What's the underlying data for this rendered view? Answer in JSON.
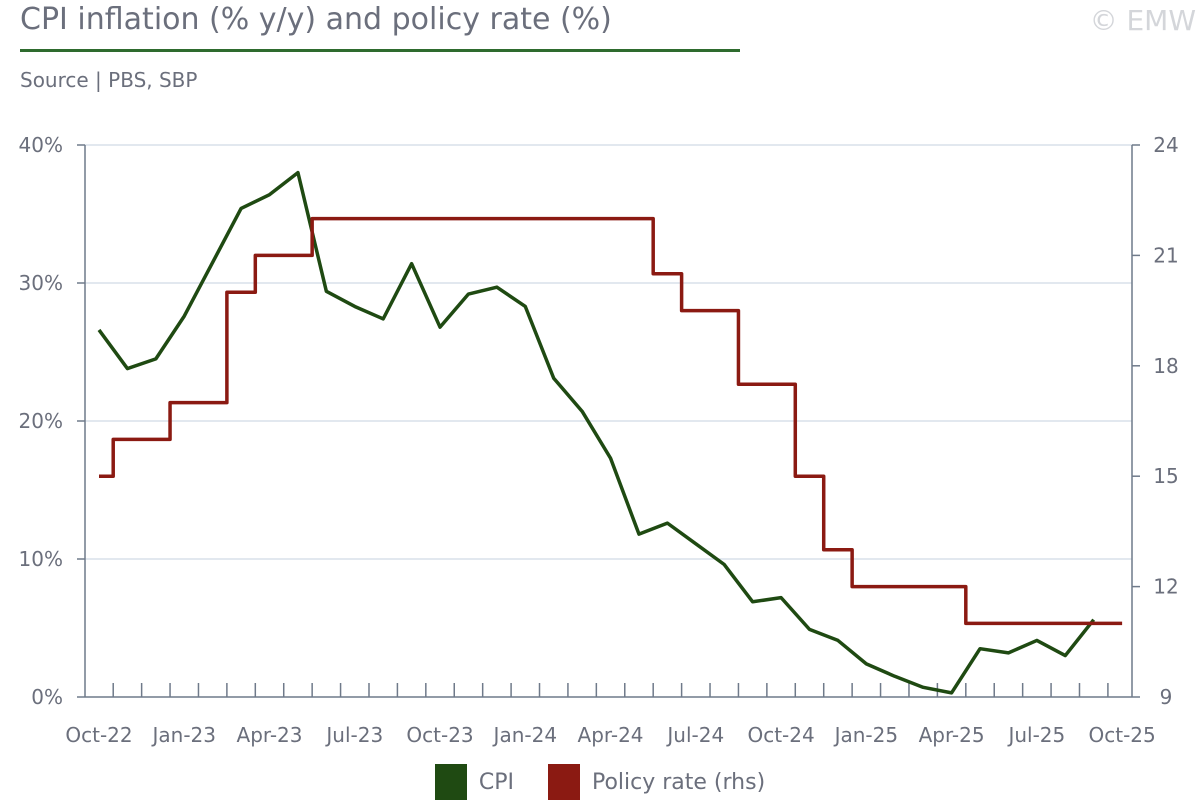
{
  "header": {
    "title": "CPI inflation (% y/y) and policy rate (%)",
    "source": "Source | PBS, SBP",
    "watermark": "© EMW"
  },
  "colors": {
    "cpi": "#1f4a12",
    "policy": "#8b1a12",
    "grid": "#d9e1ea",
    "axis": "#6f7a8a"
  },
  "legend": [
    {
      "label": "CPI",
      "color": "#1f4a12"
    },
    {
      "label": "Policy rate (rhs)",
      "color": "#8b1a12"
    }
  ],
  "chart_data": {
    "type": "line",
    "title": "CPI inflation (% y/y) and policy rate (%)",
    "x_labels": [
      "Oct-22",
      "Jan-23",
      "Apr-23",
      "Jul-23",
      "Oct-23",
      "Jan-24",
      "Apr-24",
      "Jul-24",
      "Oct-24",
      "Jan-25",
      "Apr-25",
      "Jul-25",
      "Oct-25"
    ],
    "x_start_index": -0.5,
    "x_end_index": 36,
    "y_left": {
      "min": 0,
      "max": 40,
      "ticks": [
        "0%",
        "10%",
        "20%",
        "30%",
        "40%"
      ],
      "tick_values": [
        0,
        10,
        20,
        30,
        40
      ]
    },
    "y_right": {
      "min": 9,
      "max": 24,
      "ticks": [
        "9",
        "12",
        "15",
        "18",
        "21",
        "24"
      ],
      "tick_values": [
        9,
        12,
        15,
        18,
        21,
        24
      ]
    },
    "series": [
      {
        "name": "CPI",
        "axis": "left",
        "values": [
          {
            "x": 0,
            "y": 26.6
          },
          {
            "x": 1,
            "y": 23.8
          },
          {
            "x": 2,
            "y": 24.5
          },
          {
            "x": 3,
            "y": 27.6
          },
          {
            "x": 4,
            "y": 31.5
          },
          {
            "x": 5,
            "y": 35.4
          },
          {
            "x": 6,
            "y": 36.4
          },
          {
            "x": 7,
            "y": 38.0
          },
          {
            "x": 8,
            "y": 29.4
          },
          {
            "x": 9,
            "y": 28.3
          },
          {
            "x": 10,
            "y": 27.4
          },
          {
            "x": 11,
            "y": 31.4
          },
          {
            "x": 12,
            "y": 26.8
          },
          {
            "x": 13,
            "y": 29.2
          },
          {
            "x": 14,
            "y": 29.7
          },
          {
            "x": 15,
            "y": 28.3
          },
          {
            "x": 16,
            "y": 23.1
          },
          {
            "x": 17,
            "y": 20.7
          },
          {
            "x": 18,
            "y": 17.3
          },
          {
            "x": 19,
            "y": 11.8
          },
          {
            "x": 20,
            "y": 12.6
          },
          {
            "x": 21,
            "y": 11.1
          },
          {
            "x": 22,
            "y": 9.6
          },
          {
            "x": 23,
            "y": 6.9
          },
          {
            "x": 24,
            "y": 7.2
          },
          {
            "x": 25,
            "y": 4.9
          },
          {
            "x": 26,
            "y": 4.1
          },
          {
            "x": 27,
            "y": 2.4
          },
          {
            "x": 28,
            "y": 1.5
          },
          {
            "x": 29,
            "y": 0.7
          },
          {
            "x": 30,
            "y": 0.3
          },
          {
            "x": 31,
            "y": 3.5
          },
          {
            "x": 32,
            "y": 3.2
          },
          {
            "x": 33,
            "y": 4.1
          },
          {
            "x": 34,
            "y": 3.0
          },
          {
            "x": 35,
            "y": 5.6
          }
        ]
      },
      {
        "name": "Policy rate (rhs)",
        "axis": "right",
        "step": true,
        "values": [
          {
            "x": 0,
            "y": 15
          },
          {
            "x": 0.5,
            "y": 16
          },
          {
            "x": 2.5,
            "y": 17
          },
          {
            "x": 4.5,
            "y": 20
          },
          {
            "x": 5.5,
            "y": 21
          },
          {
            "x": 7.5,
            "y": 22
          },
          {
            "x": 19.5,
            "y": 20.5
          },
          {
            "x": 20.5,
            "y": 19.5
          },
          {
            "x": 22.5,
            "y": 17.5
          },
          {
            "x": 24.5,
            "y": 15
          },
          {
            "x": 25.5,
            "y": 13
          },
          {
            "x": 26.5,
            "y": 12
          },
          {
            "x": 30.5,
            "y": 11
          },
          {
            "x": 36,
            "y": 11
          }
        ]
      }
    ]
  }
}
